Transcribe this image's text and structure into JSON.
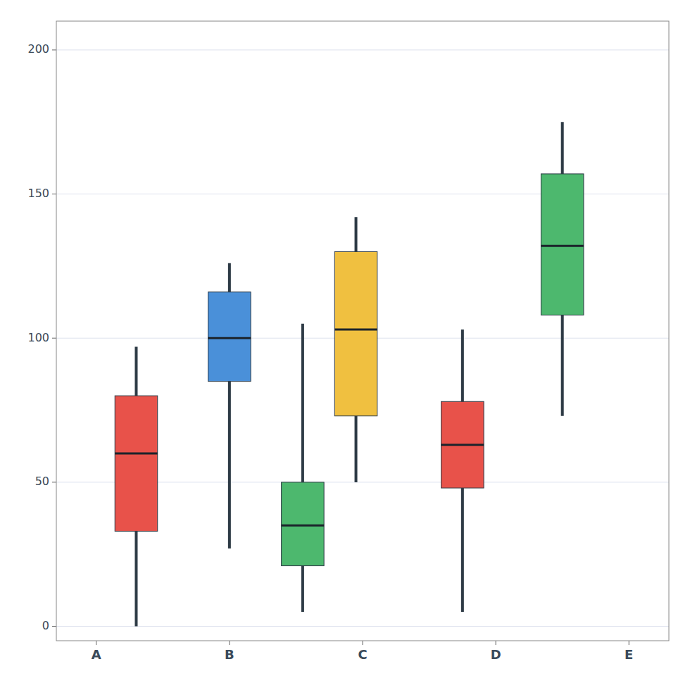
{
  "chart_data": {
    "type": "box",
    "x": [
      1.3,
      2.0,
      2.55,
      2.95,
      3.75,
      4.5
    ],
    "whisker_low": [
      0,
      27,
      5,
      50,
      5,
      73
    ],
    "box_low": [
      33,
      85,
      21,
      73,
      48,
      108
    ],
    "median": [
      60,
      100,
      35,
      103,
      63,
      132
    ],
    "box_high": [
      80,
      116,
      50,
      130,
      78,
      157
    ],
    "whisker_high": [
      97,
      126,
      105,
      142,
      103,
      175
    ],
    "colors": [
      "#e8524a",
      "#4a90d9",
      "#4db86e",
      "#f0c040",
      "#e8524a",
      "#4db86e"
    ],
    "xlim": [
      0.7,
      5.3
    ],
    "xticks": [
      {
        "value": 1,
        "label": "A"
      },
      {
        "value": 2,
        "label": "B"
      },
      {
        "value": 3,
        "label": "C"
      },
      {
        "value": 4,
        "label": "D"
      },
      {
        "value": 5,
        "label": "E"
      }
    ],
    "ylim": [
      -5,
      210
    ],
    "yticks": [
      0,
      50,
      100,
      150,
      200
    ],
    "grid": true
  }
}
